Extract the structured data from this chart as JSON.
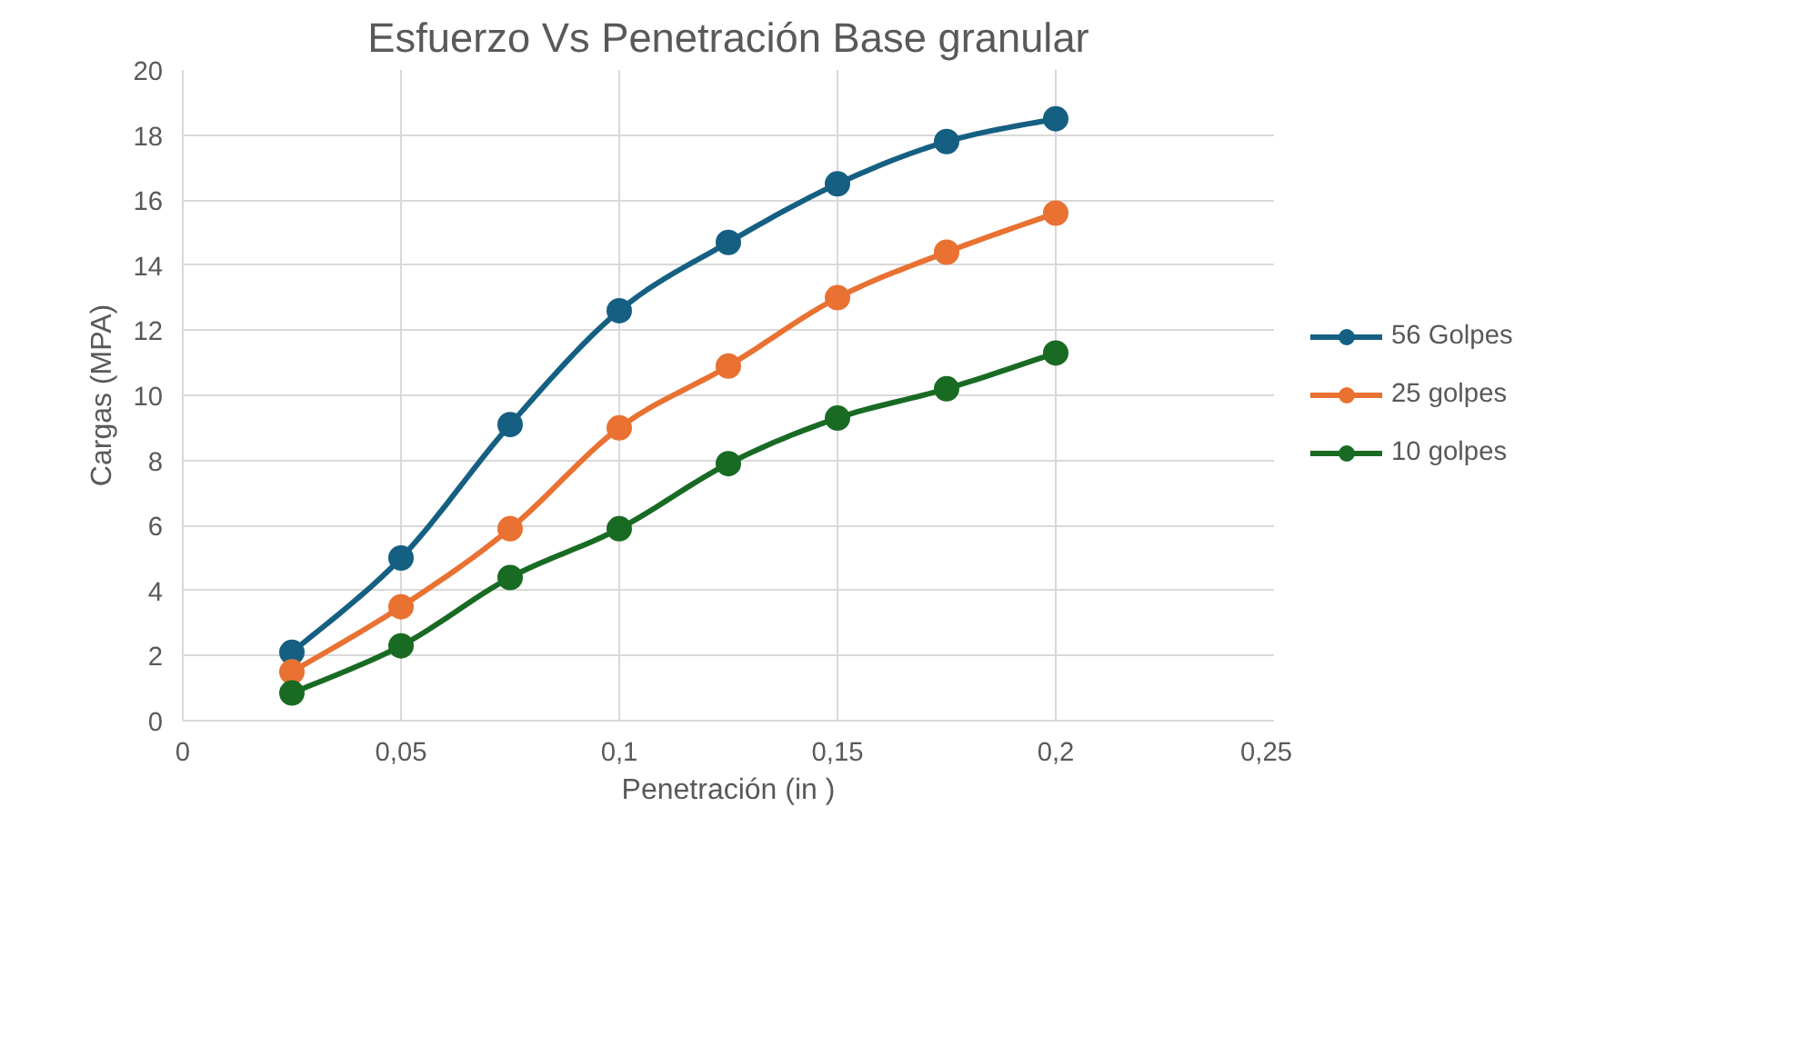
{
  "chart_data": {
    "type": "line",
    "title": "Esfuerzo Vs Penetración Base granular",
    "xlabel": "Penetración (in )",
    "ylabel": "Cargas (MPA)",
    "x": [
      0.025,
      0.05,
      0.075,
      0.1,
      0.125,
      0.15,
      0.175,
      0.2
    ],
    "series": [
      {
        "name": "56 Golpes",
        "color": "#156082",
        "values": [
          2.1,
          5.0,
          9.1,
          12.6,
          14.7,
          16.5,
          17.8,
          18.5
        ]
      },
      {
        "name": "25 golpes",
        "color": "#e97132",
        "values": [
          1.5,
          3.5,
          5.9,
          9.0,
          10.9,
          13.0,
          14.4,
          15.6
        ]
      },
      {
        "name": "10 golpes",
        "color": "#196b24",
        "values": [
          0.85,
          2.3,
          4.4,
          5.9,
          7.9,
          9.3,
          10.2,
          11.3
        ]
      }
    ],
    "xlim": [
      0,
      0.25
    ],
    "ylim": [
      0,
      20
    ],
    "xticks": [
      0,
      {
        "value": 0.05,
        "label": "0,05"
      },
      {
        "value": 0.1,
        "label": "0,1"
      },
      {
        "value": 0.15,
        "label": "0,15"
      },
      {
        "value": 0.2,
        "label": "0,2"
      },
      {
        "value": 0.25,
        "label": "0,25"
      }
    ],
    "yticks": [
      0,
      2,
      4,
      6,
      8,
      10,
      12,
      14,
      16,
      18,
      20
    ],
    "grid": true,
    "legend": "right",
    "marker": "circle",
    "line_style": "solid"
  }
}
